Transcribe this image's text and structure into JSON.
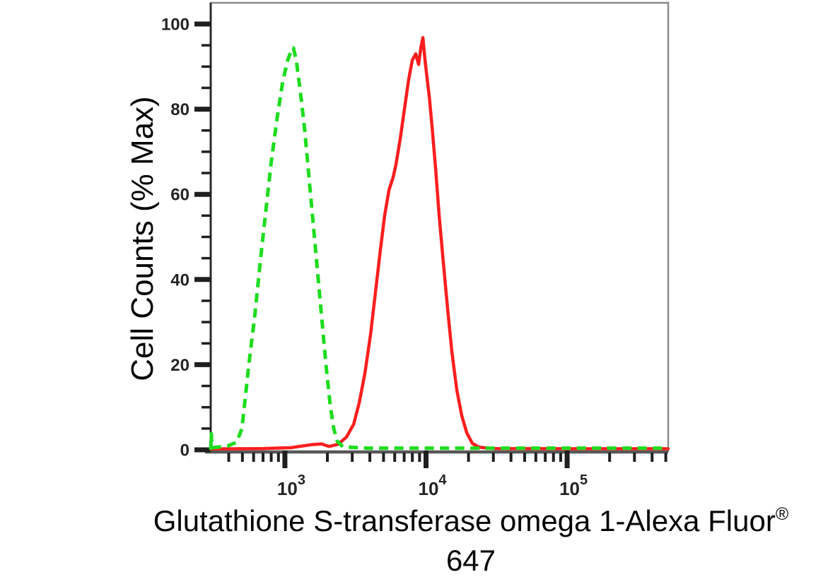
{
  "labels": {
    "ylabel": "Cell Counts (% Max)",
    "xlabel_line1": "Glutathione S-transferase omega 1-Alexa Fluor",
    "xlabel_registered_mark": "®",
    "xlabel_line2": "647",
    "x_tick_base": "10"
  },
  "colors": {
    "background": "#ffffff",
    "green_series": "#1edc1e",
    "red_series": "#fa1e1e",
    "frame_light": "#8a8a8a",
    "axis_left": "#2b2b2b",
    "axis_bottom": "#575757",
    "tick": "#1f1f1f",
    "text": "#050505"
  },
  "chart_data": {
    "type": "line",
    "title": "",
    "xlabel": "Glutathione S-transferase omega 1-Alexa Fluor® 647",
    "ylabel": "Cell Counts (% Max)",
    "x_scale": "log10",
    "xlim": [
      298,
      520000
    ],
    "ylim": [
      0,
      100
    ],
    "grid": false,
    "legend": "none",
    "x_major_ticks": [
      1000,
      10000,
      100000
    ],
    "x_major_tick_exponents": [
      "3",
      "4",
      "5"
    ],
    "x_minor_ticks": [
      400,
      500,
      600,
      700,
      800,
      900,
      2000,
      3000,
      4000,
      5000,
      6000,
      7000,
      8000,
      9000,
      20000,
      30000,
      40000,
      50000,
      60000,
      70000,
      80000,
      90000,
      200000,
      300000,
      400000,
      500000
    ],
    "y_major_ticks": [
      0,
      20,
      40,
      60,
      80,
      100
    ],
    "y_minor_ticks": [
      5,
      10,
      15,
      25,
      30,
      35,
      45,
      50,
      55,
      65,
      70,
      75,
      85,
      90,
      95
    ],
    "series": [
      {
        "name": "red-solid-curve",
        "style": "solid",
        "color": "#fa1e1e",
        "width": 4.5,
        "dash": null,
        "points": [
          [
            298,
            0.2
          ],
          [
            700,
            0.3
          ],
          [
            1100,
            0.5
          ],
          [
            1530,
            1.2
          ],
          [
            1820,
            1.4
          ],
          [
            2050,
            0.8
          ],
          [
            2380,
            1.3
          ],
          [
            2730,
            3
          ],
          [
            3070,
            6
          ],
          [
            3360,
            11
          ],
          [
            3690,
            18
          ],
          [
            4040,
            27
          ],
          [
            4380,
            37
          ],
          [
            4750,
            47
          ],
          [
            5090,
            55
          ],
          [
            5460,
            61
          ],
          [
            5850,
            64
          ],
          [
            6120,
            67
          ],
          [
            6560,
            73
          ],
          [
            7030,
            80
          ],
          [
            7540,
            87
          ],
          [
            7990,
            91.5
          ],
          [
            8460,
            93
          ],
          [
            8860,
            90.5
          ],
          [
            9200,
            94.5
          ],
          [
            9500,
            96.8
          ],
          [
            9800,
            92
          ],
          [
            10200,
            87
          ],
          [
            10540,
            83
          ],
          [
            11030,
            76
          ],
          [
            11690,
            66
          ],
          [
            12390,
            55
          ],
          [
            13270,
            44
          ],
          [
            14230,
            33
          ],
          [
            15250,
            23
          ],
          [
            16530,
            14
          ],
          [
            17930,
            8
          ],
          [
            19440,
            4
          ],
          [
            21310,
            1.5
          ],
          [
            23900,
            0.6
          ],
          [
            30800,
            0.3
          ],
          [
            100000,
            0.25
          ],
          [
            520000,
            0.25
          ]
        ]
      },
      {
        "name": "green-dashed-curve",
        "style": "dashed",
        "color": "#1edc1e",
        "width": 5,
        "dash": [
          13,
          8.5
        ],
        "points": [
          [
            298,
            0
          ],
          [
            301,
            3.8
          ],
          [
            304,
            0.5
          ],
          [
            393,
            0.9
          ],
          [
            455,
            1.8
          ],
          [
            496,
            5
          ],
          [
            555,
            20
          ],
          [
            609,
            31
          ],
          [
            668,
            44
          ],
          [
            732,
            56
          ],
          [
            803,
            68
          ],
          [
            881,
            78
          ],
          [
            966,
            86.5
          ],
          [
            1047,
            91.5
          ],
          [
            1110,
            93.8
          ],
          [
            1149,
            94.4
          ],
          [
            1203,
            91.5
          ],
          [
            1289,
            84
          ],
          [
            1382,
            75
          ],
          [
            1481,
            64
          ],
          [
            1587,
            53
          ],
          [
            1701,
            42
          ],
          [
            1823,
            31
          ],
          [
            1955,
            20
          ],
          [
            2094,
            10.5
          ],
          [
            2219,
            5
          ],
          [
            2350,
            2
          ],
          [
            2578,
            0.7
          ],
          [
            3860,
            0.4
          ],
          [
            10000,
            0.4
          ],
          [
            50000,
            0.4
          ],
          [
            200000,
            0.4
          ],
          [
            520000,
            0.4
          ]
        ]
      }
    ]
  }
}
